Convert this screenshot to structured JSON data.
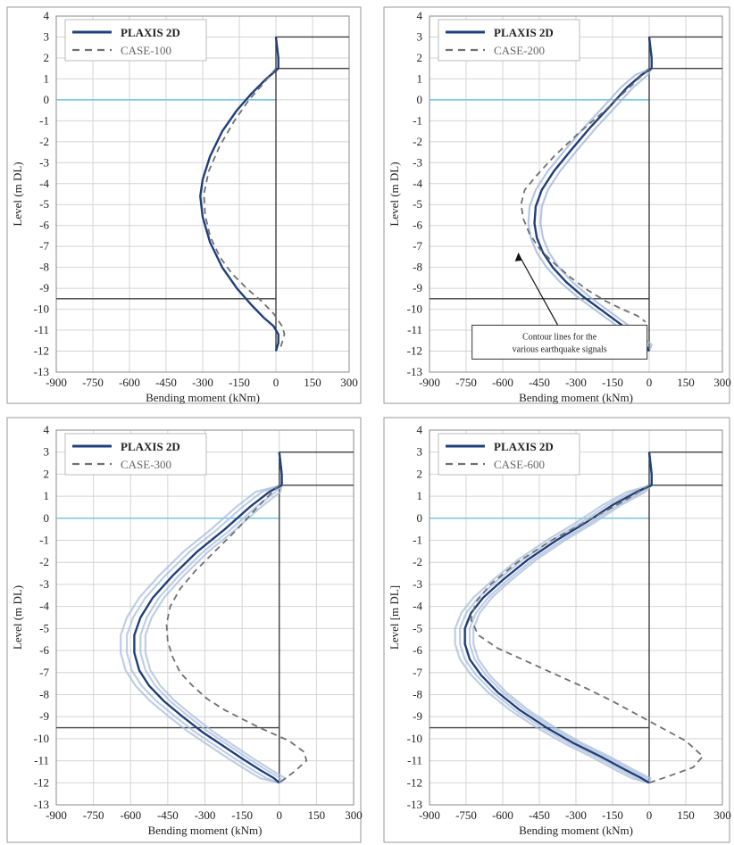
{
  "chart_data": [
    {
      "type": "line",
      "xlabel": "Bending moment (kNm)",
      "ylabel": "Level (m DL)",
      "xlim": [
        -900,
        300
      ],
      "ylim": [
        -13,
        4
      ],
      "xticks": [
        "-900",
        "-750",
        "-600",
        "-450",
        "-300",
        "-150",
        "0",
        "150",
        "300"
      ],
      "yticks": [
        "4",
        "3",
        "2",
        "1",
        "0",
        "-1",
        "-2",
        "-3",
        "-4",
        "-5",
        "-6",
        "-7",
        "-8",
        "-9",
        "-10",
        "-11",
        "-12",
        "-13"
      ],
      "grid": true,
      "legend_position": "top-left",
      "series": [
        {
          "name": "PLAXIS 2D",
          "style": "solid",
          "color": "#1f3f7a",
          "x": [
            0,
            5,
            10,
            10,
            -40,
            -100,
            -160,
            -220,
            -270,
            -300,
            -310,
            -300,
            -270,
            -220,
            -160,
            -100,
            -50,
            -10,
            10,
            10,
            0
          ],
          "y": [
            3,
            2.5,
            2,
            1.5,
            1,
            0.3,
            -0.5,
            -1.5,
            -2.7,
            -3.8,
            -4.6,
            -5.6,
            -6.8,
            -8,
            -9,
            -9.8,
            -10.4,
            -10.8,
            -11.2,
            -11.6,
            -12
          ]
        },
        {
          "name": "CASE-100",
          "style": "dashed",
          "color": "#707070",
          "x": [
            0,
            -50,
            -110,
            -170,
            -230,
            -275,
            -295,
            -290,
            -270,
            -230,
            -180,
            -120,
            -60,
            -10,
            25,
            35,
            20
          ],
          "y": [
            1.5,
            0.8,
            0,
            -1,
            -2.2,
            -3.4,
            -4.5,
            -5.5,
            -6.5,
            -7.5,
            -8.3,
            -9,
            -9.6,
            -10.2,
            -10.8,
            -11.2,
            -11.8
          ]
        }
      ],
      "extra_series": [
        {
          "style": "solid",
          "color": "#6fc1dc",
          "x": [
            -900,
            0
          ],
          "y": [
            0,
            0
          ]
        },
        {
          "style": "solid",
          "color": "#404040",
          "x": [
            -900,
            0
          ],
          "y": [
            -9.5,
            -9.5
          ]
        },
        {
          "style": "solid",
          "color": "#404040",
          "x": [
            0,
            0,
            300
          ],
          "y": [
            -12,
            3,
            3
          ]
        },
        {
          "style": "solid",
          "color": "#404040",
          "x": [
            0,
            300
          ],
          "y": [
            1.5,
            1.5
          ]
        }
      ],
      "bands": []
    },
    {
      "type": "line",
      "xlabel": "Bending moment (kNm)",
      "ylabel": "Level (m DL)",
      "xlim": [
        -900,
        300
      ],
      "ylim": [
        -13,
        4
      ],
      "xticks": [
        "-900",
        "-750",
        "-600",
        "-450",
        "-300",
        "-150",
        "0",
        "150",
        "300"
      ],
      "yticks": [
        "4",
        "3",
        "2",
        "1",
        "0",
        "-1",
        "-2",
        "-3",
        "-4",
        "-5",
        "-6",
        "-7",
        "-8",
        "-9",
        "-10",
        "-11",
        "-12",
        "-13"
      ],
      "grid": true,
      "legend_position": "top-left",
      "annotation": {
        "text": [
          "Contour lines for the",
          "various earthquake signals"
        ],
        "x": -550,
        "y": -11.1,
        "arrow_to": [
          -550,
          -7.2
        ]
      },
      "series": [
        {
          "name": "PLAXIS 2D",
          "style": "solid",
          "color": "#1f3f7a",
          "x": [
            0,
            5,
            10,
            10,
            -30,
            -90,
            -160,
            -240,
            -320,
            -390,
            -440,
            -465,
            -470,
            -460,
            -435,
            -395,
            -340,
            -270,
            -200,
            -130,
            -60,
            -15,
            0
          ],
          "y": [
            3,
            2.5,
            2,
            1.5,
            1.2,
            0.6,
            -0.3,
            -1.3,
            -2.4,
            -3.4,
            -4.3,
            -5.1,
            -5.9,
            -6.6,
            -7.3,
            -8,
            -8.7,
            -9.4,
            -10,
            -10.6,
            -11.2,
            -11.7,
            -12
          ]
        },
        {
          "name": "CASE-200",
          "style": "dashed",
          "color": "#707070",
          "x": [
            0,
            -80,
            -180,
            -290,
            -390,
            -460,
            -510,
            -525,
            -515,
            -490,
            -450,
            -390,
            -320,
            -250,
            -180,
            -110,
            -50,
            -15
          ],
          "y": [
            1.5,
            0.6,
            -0.5,
            -1.6,
            -2.7,
            -3.6,
            -4.3,
            -5,
            -5.7,
            -6.4,
            -7.1,
            -7.8,
            -8.5,
            -9.1,
            -9.6,
            -10,
            -10.3,
            -10.6
          ]
        }
      ],
      "extra_series": [
        {
          "style": "solid",
          "color": "#6fc1dc",
          "x": [
            -900,
            0
          ],
          "y": [
            0,
            0
          ]
        },
        {
          "style": "solid",
          "color": "#404040",
          "x": [
            -900,
            0
          ],
          "y": [
            -9.5,
            -9.5
          ]
        },
        {
          "style": "solid",
          "color": "#404040",
          "x": [
            0,
            0,
            300
          ],
          "y": [
            -12,
            3,
            3
          ]
        },
        {
          "style": "solid",
          "color": "#404040",
          "x": [
            0,
            300
          ],
          "y": [
            1.5,
            1.5
          ]
        }
      ],
      "bands": [
        {
          "color": "#9fb4d6",
          "offsets": [
            -25,
            25
          ]
        }
      ]
    },
    {
      "type": "line",
      "xlabel": "Bending moment (kNm)",
      "ylabel": "Level (m DL)",
      "xlim": [
        -900,
        300
      ],
      "ylim": [
        -13,
        4
      ],
      "xticks": [
        "-900",
        "-750",
        "-600",
        "-450",
        "-300",
        "-150",
        "0",
        "150",
        "300"
      ],
      "yticks": [
        "4",
        "3",
        "2",
        "1",
        "0",
        "-1",
        "-2",
        "-3",
        "-4",
        "-5",
        "-6",
        "-7",
        "-8",
        "-9",
        "-10",
        "-11",
        "-12",
        "-13"
      ],
      "grid": true,
      "legend_position": "top-left",
      "series": [
        {
          "name": "PLAXIS 2D",
          "style": "solid",
          "color": "#1f3f7a",
          "x": [
            0,
            5,
            10,
            10,
            -40,
            -120,
            -220,
            -330,
            -430,
            -510,
            -560,
            -585,
            -585,
            -565,
            -525,
            -465,
            -390,
            -310,
            -230,
            -150,
            -80,
            -20,
            0
          ],
          "y": [
            3,
            2.5,
            2,
            1.5,
            1.2,
            0.5,
            -0.5,
            -1.5,
            -2.6,
            -3.6,
            -4.5,
            -5.3,
            -6.1,
            -6.9,
            -7.6,
            -8.3,
            -9,
            -9.7,
            -10.3,
            -10.9,
            -11.4,
            -11.8,
            -12
          ]
        },
        {
          "name": "CASE-300",
          "style": "dashed",
          "color": "#707070",
          "x": [
            0,
            -80,
            -170,
            -260,
            -340,
            -400,
            -440,
            -455,
            -450,
            -430,
            -400,
            -350,
            -290,
            -220,
            -150,
            -80,
            -20,
            40,
            100,
            110,
            60,
            0
          ],
          "y": [
            1.5,
            0.6,
            -0.5,
            -1.5,
            -2.4,
            -3.2,
            -4,
            -4.8,
            -5.6,
            -6.3,
            -7,
            -7.6,
            -8.2,
            -8.7,
            -9.1,
            -9.5,
            -9.8,
            -10.1,
            -10.6,
            -11,
            -11.5,
            -12
          ]
        }
      ],
      "extra_series": [
        {
          "style": "solid",
          "color": "#6fc1dc",
          "x": [
            -900,
            0
          ],
          "y": [
            0,
            0
          ]
        },
        {
          "style": "solid",
          "color": "#404040",
          "x": [
            -900,
            0
          ],
          "y": [
            -9.5,
            -9.5
          ]
        },
        {
          "style": "solid",
          "color": "#404040",
          "x": [
            0,
            0,
            300
          ],
          "y": [
            -12,
            3,
            3
          ]
        },
        {
          "style": "solid",
          "color": "#404040",
          "x": [
            0,
            300
          ],
          "y": [
            1.5,
            1.5
          ]
        }
      ],
      "bands": [
        {
          "color": "#a9bddb",
          "offsets": [
            -55,
            -30,
            25,
            45
          ]
        }
      ]
    },
    {
      "type": "line",
      "xlabel": "Bending moment (kNm)",
      "ylabel": "Level [m DL]",
      "xlim": [
        -900,
        300
      ],
      "ylim": [
        -13,
        4
      ],
      "xticks": [
        "-900",
        "-750",
        "-600",
        "-450",
        "-300",
        "-150",
        "0",
        "150",
        "300"
      ],
      "yticks": [
        "4",
        "3",
        "2",
        "1",
        "0",
        "-1",
        "-2",
        "-3",
        "-4",
        "-5",
        "-6",
        "-7",
        "-8",
        "-9",
        "-10",
        "-11",
        "-12",
        "-13"
      ],
      "grid": true,
      "legend_position": "top-left",
      "series": [
        {
          "name": "PLAXIS 2D",
          "style": "solid",
          "color": "#1f3f7a",
          "x": [
            0,
            5,
            10,
            10,
            -50,
            -150,
            -260,
            -380,
            -500,
            -600,
            -680,
            -730,
            -755,
            -755,
            -735,
            -690,
            -620,
            -530,
            -420,
            -310,
            -200,
            -100,
            -30,
            0
          ],
          "y": [
            3,
            2.5,
            2,
            1.5,
            1.2,
            0.6,
            -0.2,
            -1,
            -1.9,
            -2.8,
            -3.6,
            -4.3,
            -5,
            -5.7,
            -6.4,
            -7.1,
            -7.9,
            -8.7,
            -9.5,
            -10.2,
            -10.8,
            -11.4,
            -11.8,
            -12
          ]
        },
        {
          "name": "CASE-600",
          "style": "dashed",
          "color": "#707070",
          "x": [
            0,
            -100,
            -250,
            -400,
            -540,
            -650,
            -710,
            -730,
            -700,
            -620,
            -500,
            -380,
            -260,
            -150,
            -50,
            50,
            150,
            220,
            180,
            80,
            0
          ],
          "y": [
            1.5,
            0.8,
            -0.1,
            -1,
            -2,
            -3,
            -3.8,
            -4.6,
            -5.3,
            -5.9,
            -6.5,
            -7.1,
            -7.7,
            -8.3,
            -8.9,
            -9.5,
            -10.1,
            -10.8,
            -11.3,
            -11.7,
            -12
          ]
        }
      ],
      "extra_series": [
        {
          "style": "solid",
          "color": "#6fc1dc",
          "x": [
            -900,
            0
          ],
          "y": [
            0,
            0
          ]
        },
        {
          "style": "solid",
          "color": "#404040",
          "x": [
            -900,
            0
          ],
          "y": [
            -9.5,
            -9.5
          ]
        },
        {
          "style": "solid",
          "color": "#404040",
          "x": [
            0,
            0,
            300
          ],
          "y": [
            -12,
            3,
            3
          ]
        },
        {
          "style": "solid",
          "color": "#404040",
          "x": [
            0,
            300
          ],
          "y": [
            1.5,
            1.5
          ]
        }
      ],
      "bands": [
        {
          "color": "#a9bddb",
          "offsets": [
            -40,
            -20,
            20,
            35
          ]
        }
      ]
    }
  ]
}
